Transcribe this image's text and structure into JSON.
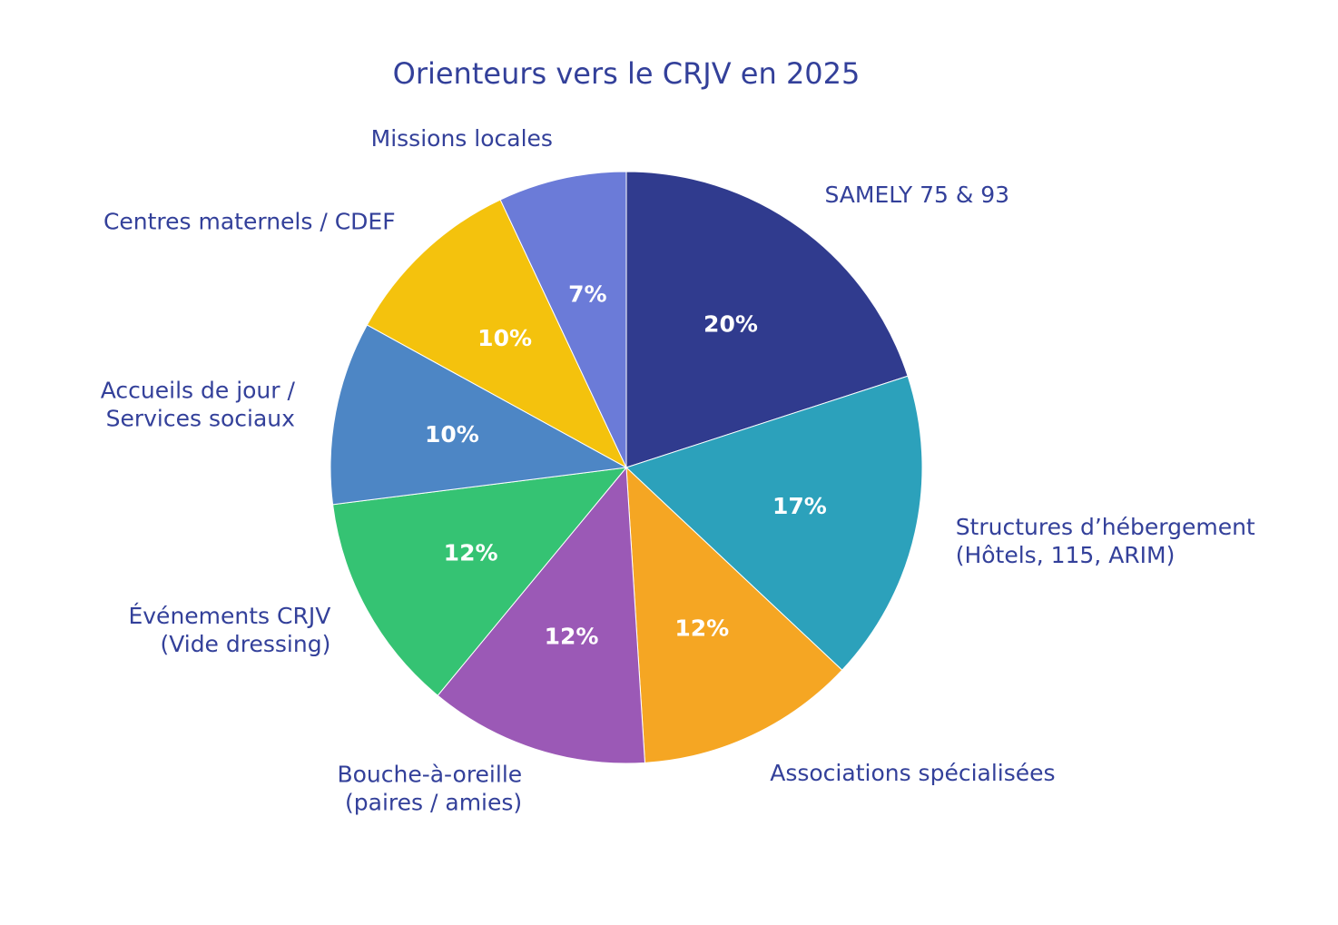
{
  "chart_data": {
    "type": "pie",
    "title": "Orienteurs vers le CRJV en 2025",
    "start_angle_deg": 0,
    "direction": "clockwise",
    "label_color": "#33409a",
    "slices": [
      {
        "name": "SAMELY 75 & 93",
        "lines": [
          "SAMELY 75 & 93"
        ],
        "value": 20,
        "percent_label": "20%",
        "color": "#303b8e"
      },
      {
        "name": "Structures d’hébergement (Hôtels, 115, ARIM)",
        "lines": [
          "Structures d’hébergement",
          "(Hôtels, 115, ARIM)"
        ],
        "value": 17,
        "percent_label": "17%",
        "color": "#2ca1bb"
      },
      {
        "name": "Associations spécialisées",
        "lines": [
          "Associations spécialisées"
        ],
        "value": 12,
        "percent_label": "12%",
        "color": "#f5a623"
      },
      {
        "name": "Bouche-à-oreille (paires / amies)",
        "lines": [
          "Bouche-à-oreille",
          "(paires / amies)"
        ],
        "value": 12,
        "percent_label": "12%",
        "color": "#9b59b6"
      },
      {
        "name": "Événements CRJV (Vide dressing)",
        "lines": [
          "Événements CRJV",
          "(Vide dressing)"
        ],
        "value": 12,
        "percent_label": "12%",
        "color": "#35c373"
      },
      {
        "name": "Accueils de jour / Services sociaux",
        "lines": [
          "Accueils de jour /",
          "Services sociaux"
        ],
        "value": 10,
        "percent_label": "10%",
        "color": "#4d86c5"
      },
      {
        "name": "Centres maternels / CDEF",
        "lines": [
          "Centres maternels / CDEF"
        ],
        "value": 10,
        "percent_label": "10%",
        "color": "#f4c20d"
      },
      {
        "name": "Missions locales",
        "lines": [
          "Missions locales"
        ],
        "value": 7,
        "percent_label": "7%",
        "color": "#6b7bd8"
      }
    ]
  }
}
